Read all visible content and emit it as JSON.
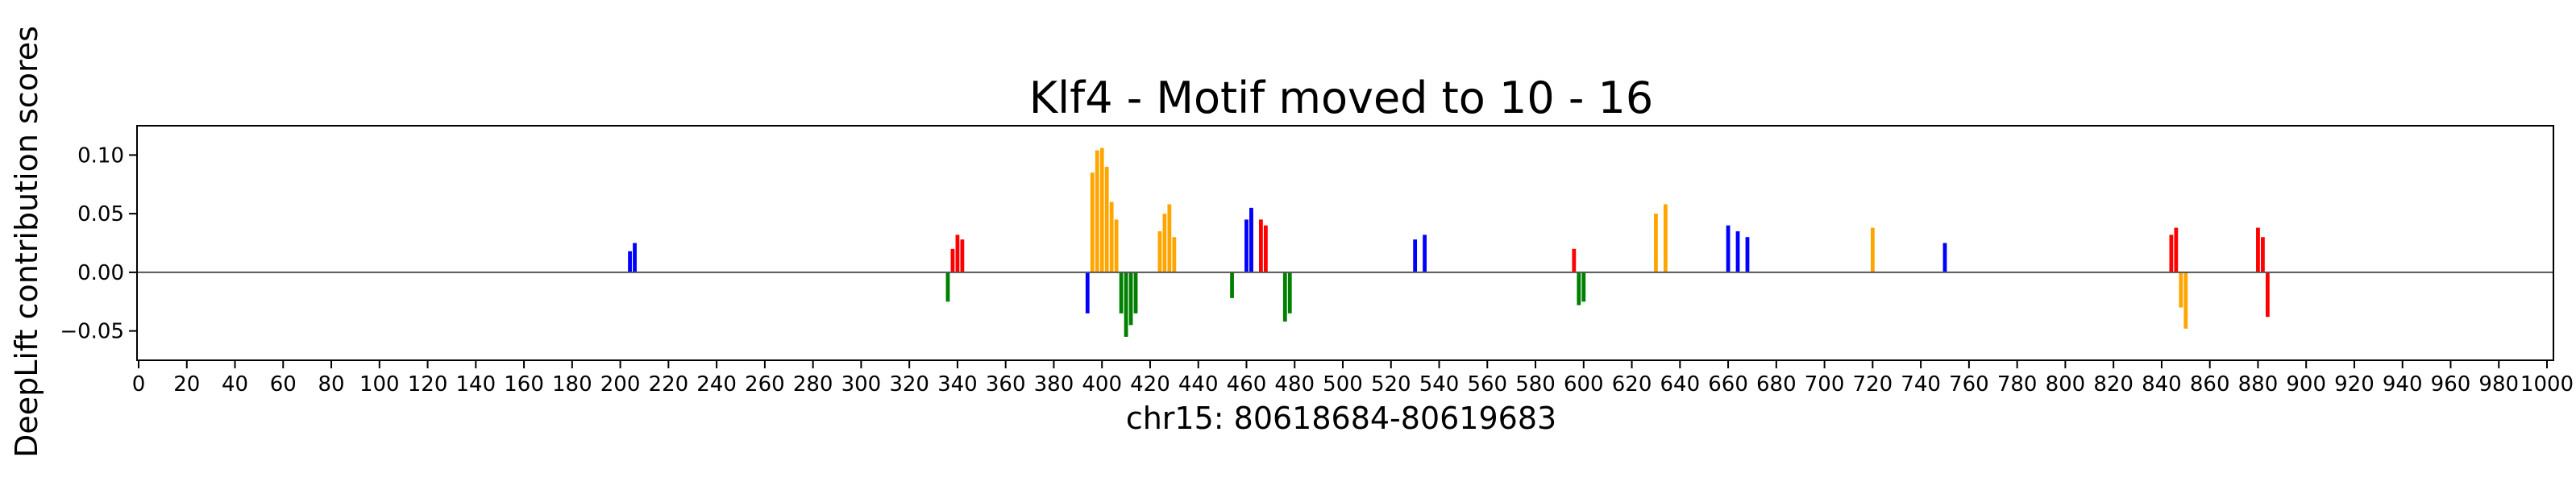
{
  "chart_data": {
    "type": "bar",
    "title": "Klf4 - Motif moved to 10 - 16",
    "xlabel": "chr15: 80618684-80619683",
    "ylabel": "DeepLift contribution scores",
    "xlim": [
      0,
      1000
    ],
    "ylim": [
      -0.075,
      0.125
    ],
    "xticks": [
      0,
      20,
      40,
      60,
      80,
      100,
      120,
      140,
      160,
      180,
      200,
      220,
      240,
      260,
      280,
      300,
      320,
      340,
      360,
      380,
      400,
      420,
      440,
      460,
      480,
      500,
      520,
      540,
      560,
      580,
      600,
      620,
      640,
      660,
      680,
      700,
      720,
      740,
      760,
      780,
      800,
      820,
      840,
      860,
      880,
      900,
      920,
      940,
      960,
      980,
      1000
    ],
    "yticks": [
      -0.05,
      0.0,
      0.05,
      0.1
    ],
    "ytick_labels": [
      "−0.05",
      "0.00",
      "0.05",
      "0.10"
    ],
    "grid": false,
    "legend": "none",
    "base_colors": {
      "A": "#008000",
      "C": "#0000ff",
      "G": "#ffa500",
      "T": "#ff0000"
    },
    "series": [
      {
        "base": "G",
        "x": [
          396,
          398,
          400,
          402,
          404,
          406,
          424,
          426,
          428,
          430,
          630,
          634,
          720,
          848,
          850
        ],
        "values": [
          0.085,
          0.104,
          0.106,
          0.09,
          0.06,
          0.045,
          0.035,
          0.05,
          0.058,
          0.03,
          0.05,
          0.058,
          0.038,
          -0.03,
          -0.048
        ]
      },
      {
        "base": "T",
        "x": [
          338,
          340,
          342,
          462,
          466,
          468,
          596,
          844,
          846,
          880,
          882,
          884
        ],
        "values": [
          0.02,
          0.032,
          0.028,
          0.05,
          0.045,
          0.04,
          0.02,
          0.032,
          0.038,
          0.038,
          0.03,
          -0.038
        ]
      },
      {
        "base": "A",
        "x": [
          336,
          408,
          410,
          412,
          414,
          454,
          476,
          478,
          598,
          600
        ],
        "values": [
          -0.025,
          -0.035,
          -0.055,
          -0.045,
          -0.035,
          -0.022,
          -0.042,
          -0.035,
          -0.028,
          -0.025
        ]
      },
      {
        "base": "C",
        "x": [
          204,
          206,
          394,
          460,
          462,
          530,
          534,
          660,
          664,
          668,
          750
        ],
        "values": [
          0.018,
          0.025,
          -0.035,
          0.045,
          0.055,
          0.028,
          0.032,
          0.04,
          0.035,
          0.03,
          0.025
        ]
      }
    ]
  }
}
